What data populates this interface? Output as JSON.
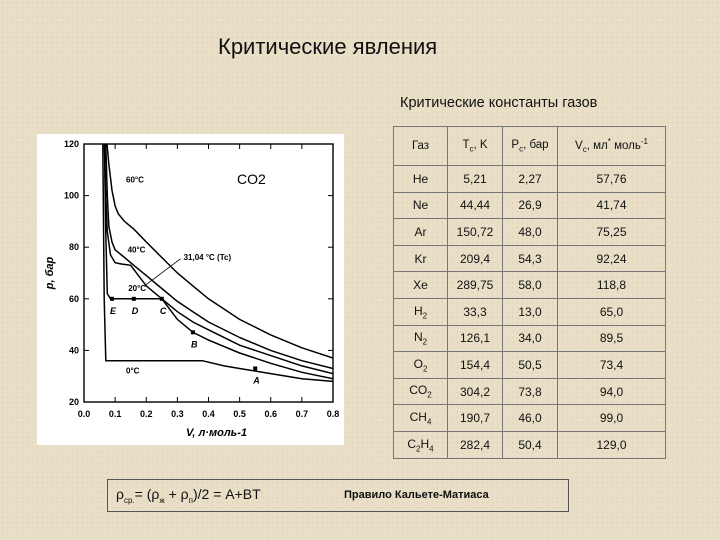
{
  "slide": {
    "title": "Критические явления",
    "subtitle": "Критические константы газов"
  },
  "chart_data": {
    "type": "line",
    "title": "CO2",
    "xlabel": "V, л·моль-1",
    "ylabel": "p, бар",
    "xlim": [
      0.0,
      0.8
    ],
    "ylim": [
      20,
      120
    ],
    "x_ticks": [
      "0.0",
      "0.1",
      "0.2",
      "0.3",
      "0.4",
      "0.5",
      "0.6",
      "0.7",
      "0.8"
    ],
    "y_ticks": [
      "20",
      "40",
      "60",
      "80",
      "100",
      "120"
    ],
    "series": [
      {
        "name": "60°C",
        "points": [
          [
            0.07,
            125
          ],
          [
            0.08,
            112
          ],
          [
            0.09,
            102
          ],
          [
            0.1,
            96
          ],
          [
            0.11,
            93
          ],
          [
            0.13,
            90
          ],
          [
            0.16,
            87
          ],
          [
            0.2,
            82
          ],
          [
            0.25,
            76
          ],
          [
            0.3,
            70
          ],
          [
            0.35,
            65
          ],
          [
            0.4,
            60
          ],
          [
            0.5,
            52
          ],
          [
            0.6,
            46
          ],
          [
            0.7,
            41
          ],
          [
            0.8,
            37
          ]
        ]
      },
      {
        "name": "40°C",
        "points": [
          [
            0.07,
            120
          ],
          [
            0.075,
            100
          ],
          [
            0.08,
            88
          ],
          [
            0.09,
            82
          ],
          [
            0.1,
            79
          ],
          [
            0.13,
            76
          ],
          [
            0.16,
            73
          ],
          [
            0.2,
            69
          ],
          [
            0.25,
            64
          ],
          [
            0.3,
            59
          ],
          [
            0.35,
            55
          ],
          [
            0.4,
            51
          ],
          [
            0.5,
            45
          ],
          [
            0.6,
            40
          ],
          [
            0.7,
            36
          ],
          [
            0.8,
            33
          ]
        ]
      },
      {
        "name": "31,04 °C (Tc)",
        "points": [
          [
            0.065,
            124
          ],
          [
            0.07,
            100
          ],
          [
            0.075,
            86
          ],
          [
            0.085,
            77
          ],
          [
            0.1,
            74
          ],
          [
            0.12,
            73.5
          ],
          [
            0.15,
            73
          ],
          [
            0.2,
            65
          ],
          [
            0.25,
            60
          ],
          [
            0.3,
            55
          ],
          [
            0.35,
            51
          ],
          [
            0.4,
            48
          ],
          [
            0.5,
            42
          ],
          [
            0.6,
            38
          ],
          [
            0.7,
            34
          ],
          [
            0.8,
            31
          ]
        ]
      },
      {
        "name": "20°C",
        "points": [
          [
            0.065,
            124
          ],
          [
            0.07,
            85
          ],
          [
            0.075,
            62
          ],
          [
            0.085,
            60
          ],
          [
            0.25,
            60
          ],
          [
            0.3,
            52
          ],
          [
            0.35,
            47
          ],
          [
            0.4,
            44
          ],
          [
            0.5,
            39
          ],
          [
            0.6,
            35
          ],
          [
            0.7,
            31.5
          ],
          [
            0.8,
            29
          ]
        ]
      },
      {
        "name": "0°C",
        "points": [
          [
            0.06,
            124
          ],
          [
            0.065,
            60
          ],
          [
            0.07,
            36
          ],
          [
            0.38,
            36
          ],
          [
            0.45,
            34
          ],
          [
            0.5,
            33
          ],
          [
            0.6,
            31
          ],
          [
            0.7,
            29
          ],
          [
            0.8,
            28
          ]
        ]
      }
    ],
    "isotherm_labels": [
      "60°C",
      "40°C",
      "31,04 °C (Tc)",
      "20°C",
      "0°C"
    ],
    "tie_line": {
      "p": 60,
      "x_start": 0.085,
      "x_end": 0.25
    },
    "points": [
      {
        "label": "E",
        "x": 0.09,
        "y": 60
      },
      {
        "label": "D",
        "x": 0.16,
        "y": 60
      },
      {
        "label": "C",
        "x": 0.25,
        "y": 60
      },
      {
        "label": "B",
        "x": 0.35,
        "y": 47
      },
      {
        "label": "A",
        "x": 0.55,
        "y": 33
      }
    ]
  },
  "table": {
    "headers": {
      "gas": "Газ",
      "tc": "T",
      "tc_sub": "c",
      "tc_unit": ", K",
      "pc": "P",
      "pc_sub": "c",
      "pc_unit": ", бар",
      "vc": "V",
      "vc_sub": "c",
      "vc_unit": ", мл",
      "vc_sup": "*",
      "vc_mol": "моль",
      "vc_mol_sup": "-1"
    },
    "rows": [
      {
        "gas": "He",
        "sub": "",
        "tc": "5,21",
        "pc": "2,27",
        "vc": "57,76"
      },
      {
        "gas": "Ne",
        "sub": "",
        "tc": "44,44",
        "pc": "26,9",
        "vc": "41,74"
      },
      {
        "gas": "Ar",
        "sub": "",
        "tc": "150,72",
        "pc": "48,0",
        "vc": "75,25"
      },
      {
        "gas": "Kr",
        "sub": "",
        "tc": "209,4",
        "pc": "54,3",
        "vc": "92,24"
      },
      {
        "gas": "Xe",
        "sub": "",
        "tc": "289,75",
        "pc": "58,0",
        "vc": "118,8"
      },
      {
        "gas": "H",
        "sub": "2",
        "tc": "33,3",
        "pc": "13,0",
        "vc": "65,0"
      },
      {
        "gas": "N",
        "sub": "2",
        "tc": "126,1",
        "pc": "34,0",
        "vc": "89,5"
      },
      {
        "gas": "O",
        "sub": "2",
        "tc": "154,4",
        "pc": "50,5",
        "vc": "73,4"
      },
      {
        "gas": "CO",
        "sub": "2",
        "tc": "304,2",
        "pc": "73,8",
        "vc": "94,0"
      },
      {
        "gas": "CH",
        "sub": "4",
        "tc": "190,7",
        "pc": "46,0",
        "vc": "99,0"
      },
      {
        "gas": "C",
        "sub": "2H4",
        "tc": "282,4",
        "pc": "50,4",
        "vc": "129,0"
      }
    ]
  },
  "formula": {
    "rho": "ρ",
    "sub_cp": "ср.",
    "eq": "= (",
    "sub_zh": "ж",
    "plus": " + ",
    "sub_p": "п",
    "tail": ")/2 = A+BT"
  },
  "rule": "Правило Кальете-Матиаса"
}
